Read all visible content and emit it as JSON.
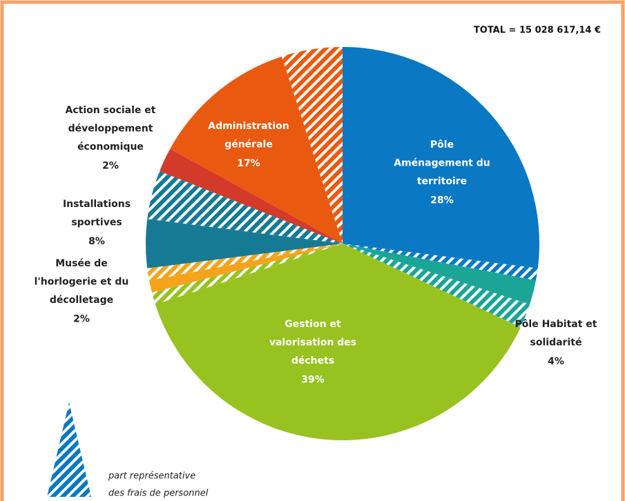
{
  "chart_data": {
    "type": "pie",
    "title": "TOTAL = 15 028 617,14 €",
    "categories": [
      [
        "Pôle",
        "Aménagement du",
        "territoire"
      ],
      [
        "Pôle Habitat  et",
        "solidarité"
      ],
      [
        "Gestion et",
        "valorisation des",
        "déchets"
      ],
      [
        "Musée de",
        "l'horlogerie et du",
        "décolletage"
      ],
      [
        "Installations",
        "sportives"
      ],
      [
        "Action sociale et",
        "développement",
        "économique"
      ],
      [
        "Administration",
        "générale"
      ]
    ],
    "values": [
      28,
      4,
      39,
      2,
      8,
      2,
      17
    ],
    "value_labels": [
      "28%",
      "4%",
      "39%",
      "2%",
      "8%",
      "2%",
      "17%"
    ],
    "personnel": [
      1,
      2,
      1,
      1,
      4,
      0,
      5
    ],
    "colors": [
      "#0a78c2",
      "#1aa597",
      "#98c220",
      "#f5a31b",
      "#167a95",
      "#d23a2a",
      "#e9590f"
    ],
    "legend": [
      "part représentative",
      "des frais de personnel"
    ]
  }
}
